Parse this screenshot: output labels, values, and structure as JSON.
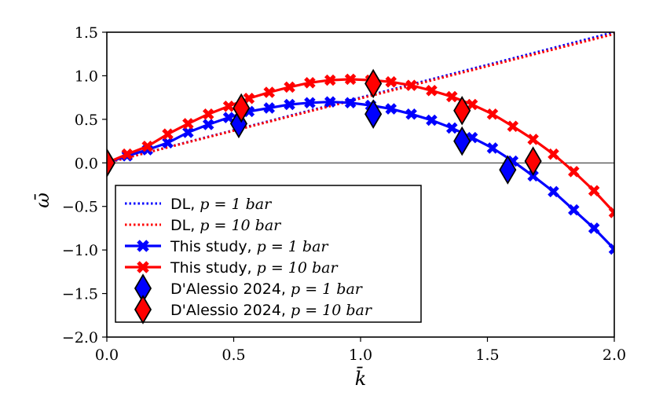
{
  "chart_data": {
    "type": "line",
    "title": "",
    "xlabel": "k̄",
    "ylabel": "ω̄",
    "xlim": [
      0.0,
      2.0
    ],
    "ylim": [
      -2.0,
      1.5
    ],
    "xticks": [
      "0.0",
      "0.5",
      "1.0",
      "1.5",
      "2.0"
    ],
    "yticks": [
      "−2.0",
      "−1.5",
      "−1.0",
      "−0.5",
      "0.0",
      "0.5",
      "1.0",
      "1.5"
    ],
    "xtick_values": [
      0.0,
      0.5,
      1.0,
      1.5,
      2.0
    ],
    "ytick_values": [
      -2.0,
      -1.5,
      -1.0,
      -0.5,
      0.0,
      0.5,
      1.0,
      1.5
    ],
    "zero_line": true,
    "legend_position": "lower-left",
    "series": [
      {
        "name": "DL, p = 1 bar",
        "legend_prefix": "DL, ",
        "legend_suffix": "p = 1 bar",
        "style": "dotted",
        "color": "#0000ff",
        "x": [
          0.0,
          0.5,
          1.0,
          1.5,
          2.0
        ],
        "y": [
          0.0,
          0.375,
          0.75,
          1.125,
          1.5
        ]
      },
      {
        "name": "DL, p = 10 bar",
        "legend_prefix": "DL, ",
        "legend_suffix": "p = 10 bar",
        "style": "dotted",
        "color": "#ff0000",
        "x": [
          0.0,
          0.5,
          1.0,
          1.5,
          2.0
        ],
        "y": [
          0.0,
          0.37,
          0.74,
          1.11,
          1.48
        ]
      },
      {
        "name": "This study, p = 1 bar",
        "legend_prefix": "This study, ",
        "legend_suffix": "p = 1 bar",
        "style": "line-x",
        "color": "#0000ff",
        "x": [
          0.0,
          0.08,
          0.16,
          0.24,
          0.32,
          0.4,
          0.48,
          0.56,
          0.64,
          0.72,
          0.8,
          0.88,
          0.96,
          1.04,
          1.12,
          1.2,
          1.28,
          1.36,
          1.44,
          1.52,
          1.6,
          1.68,
          1.76,
          1.84,
          1.92,
          2.0
        ],
        "y": [
          0.0,
          0.08,
          0.15,
          0.23,
          0.35,
          0.44,
          0.52,
          0.59,
          0.63,
          0.67,
          0.69,
          0.7,
          0.69,
          0.66,
          0.62,
          0.56,
          0.49,
          0.4,
          0.29,
          0.17,
          0.02,
          -0.15,
          -0.33,
          -0.54,
          -0.75,
          -0.99
        ]
      },
      {
        "name": "This study, p = 10 bar",
        "legend_prefix": "This study, ",
        "legend_suffix": "p = 10 bar",
        "style": "line-x",
        "color": "#ff0000",
        "x": [
          0.0,
          0.08,
          0.16,
          0.24,
          0.32,
          0.4,
          0.48,
          0.56,
          0.64,
          0.72,
          0.8,
          0.88,
          0.96,
          1.04,
          1.12,
          1.2,
          1.28,
          1.36,
          1.44,
          1.52,
          1.6,
          1.68,
          1.76,
          1.84,
          1.92,
          2.0
        ],
        "y": [
          0.0,
          0.1,
          0.19,
          0.33,
          0.45,
          0.56,
          0.65,
          0.74,
          0.81,
          0.87,
          0.92,
          0.95,
          0.96,
          0.95,
          0.93,
          0.89,
          0.83,
          0.76,
          0.67,
          0.56,
          0.42,
          0.27,
          0.1,
          -0.1,
          -0.32,
          -0.57
        ]
      },
      {
        "name": "D'Alessio 2024, p = 1 bar",
        "legend_prefix": "D'Alessio 2024, ",
        "legend_suffix": "p = 1 bar",
        "style": "diamond",
        "color": "#0000ff",
        "x": [
          0.0,
          0.52,
          1.05,
          1.4,
          1.58
        ],
        "y": [
          0.0,
          0.45,
          0.56,
          0.25,
          -0.08
        ]
      },
      {
        "name": "D'Alessio 2024, p = 10 bar",
        "legend_prefix": "D'Alessio 2024, ",
        "legend_suffix": "p = 10 bar",
        "style": "diamond",
        "color": "#ff0000",
        "x": [
          0.0,
          0.53,
          1.05,
          1.4,
          1.68
        ],
        "y": [
          0.0,
          0.63,
          0.91,
          0.6,
          0.02
        ]
      }
    ]
  }
}
